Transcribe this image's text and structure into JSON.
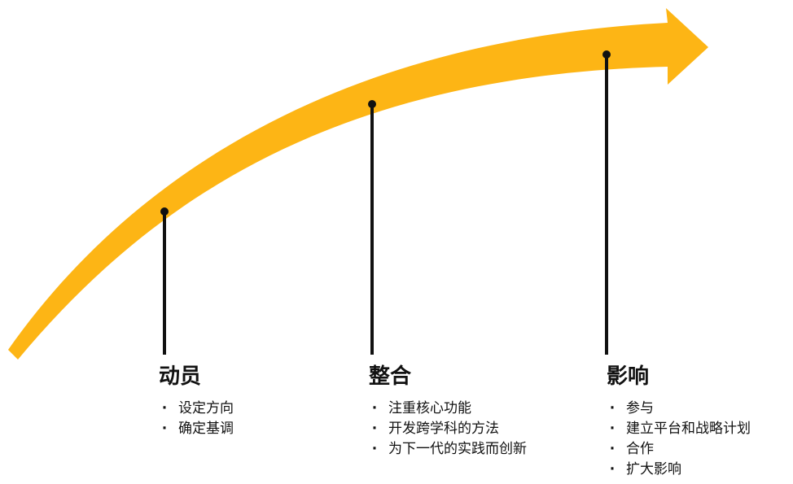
{
  "colors": {
    "arrow": "#fdb515",
    "line": "#111111",
    "text": "#111111",
    "background": "#ffffff"
  },
  "stages": [
    {
      "title": "动员",
      "bullet": "·",
      "items": [
        "设定方向",
        "确定基调"
      ]
    },
    {
      "title": "整合",
      "bullet": "·",
      "items": [
        "注重核心功能",
        "开发跨学科的方法",
        "为下一代的实践而创新"
      ]
    },
    {
      "title": "影响",
      "bullet": "·",
      "items": [
        "参与",
        "建立平台和战略计划",
        "合作",
        "扩大影响"
      ]
    }
  ]
}
